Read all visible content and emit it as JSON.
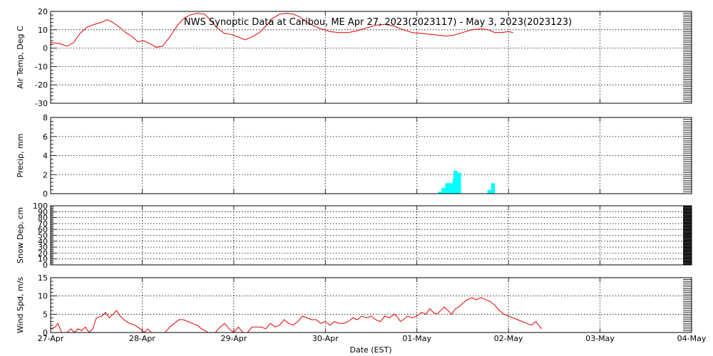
{
  "chart_data": {
    "type": "multi-panel time series",
    "title": "NWS Synoptic Data at Caribou, ME   Apr 27, 2023(2023117) - May  3, 2023(2023123)",
    "xlabel": "Date (EST)",
    "x_range": [
      0,
      7
    ],
    "x_ticks": [
      {
        "x": 0,
        "label": "27-Apr"
      },
      {
        "x": 1,
        "label": "28-Apr"
      },
      {
        "x": 2,
        "label": "29-Apr"
      },
      {
        "x": 3,
        "label": "30-Apr"
      },
      {
        "x": 4,
        "label": "01-May"
      },
      {
        "x": 5,
        "label": "02-May"
      },
      {
        "x": 6,
        "label": "03-May"
      },
      {
        "x": 7,
        "label": "04-May"
      }
    ],
    "panels": [
      {
        "id": "temp",
        "type": "line",
        "ylabel": "Air Temp, Deg C",
        "ylim": [
          -30,
          20
        ],
        "yticks": [
          -30,
          -20,
          -10,
          0,
          10,
          20
        ],
        "color": "#e00000",
        "points": [
          [
            0.0,
            3
          ],
          [
            0.1,
            2.5
          ],
          [
            0.18,
            1
          ],
          [
            0.25,
            3
          ],
          [
            0.32,
            8
          ],
          [
            0.4,
            11.5
          ],
          [
            0.48,
            13
          ],
          [
            0.55,
            14
          ],
          [
            0.62,
            15.5
          ],
          [
            0.68,
            14
          ],
          [
            0.75,
            11.5
          ],
          [
            0.82,
            8.5
          ],
          [
            0.9,
            6
          ],
          [
            0.95,
            3.5
          ],
          [
            1.02,
            4
          ],
          [
            1.08,
            2.5
          ],
          [
            1.15,
            0.5
          ],
          [
            1.22,
            1
          ],
          [
            1.3,
            6
          ],
          [
            1.38,
            12
          ],
          [
            1.45,
            16
          ],
          [
            1.52,
            18
          ],
          [
            1.6,
            19
          ],
          [
            1.68,
            18.5
          ],
          [
            1.75,
            15
          ],
          [
            1.82,
            11
          ],
          [
            1.9,
            8
          ],
          [
            1.97,
            7.5
          ],
          [
            2.05,
            6
          ],
          [
            2.12,
            4.5
          ],
          [
            2.2,
            6
          ],
          [
            2.28,
            8.5
          ],
          [
            2.35,
            12
          ],
          [
            2.42,
            16
          ],
          [
            2.5,
            18.5
          ],
          [
            2.58,
            19
          ],
          [
            2.65,
            18.5
          ],
          [
            2.72,
            17
          ],
          [
            2.8,
            14
          ],
          [
            2.88,
            12
          ],
          [
            2.95,
            10.5
          ],
          [
            3.05,
            9
          ],
          [
            3.15,
            8.5
          ],
          [
            3.25,
            8.5
          ],
          [
            3.35,
            9.5
          ],
          [
            3.45,
            11
          ],
          [
            3.55,
            12.5
          ],
          [
            3.65,
            13
          ],
          [
            3.75,
            12
          ],
          [
            3.85,
            10
          ],
          [
            3.95,
            8.5
          ],
          [
            4.05,
            8
          ],
          [
            4.15,
            7.5
          ],
          [
            4.25,
            7
          ],
          [
            4.32,
            6.5
          ],
          [
            4.4,
            7
          ],
          [
            4.5,
            8.5
          ],
          [
            4.6,
            10
          ],
          [
            4.7,
            10.5
          ],
          [
            4.78,
            10
          ],
          [
            4.85,
            8.5
          ],
          [
            4.92,
            8.5
          ],
          [
            5.0,
            9
          ],
          [
            5.05,
            8.5
          ]
        ]
      },
      {
        "id": "precip",
        "type": "bar",
        "ylabel": "Precip, mm",
        "ylim": [
          0,
          8
        ],
        "yticks": [
          0,
          2,
          4,
          6,
          8
        ],
        "color": "#00ffff",
        "bar_width": 0.042,
        "bars": [
          [
            4.23,
            0.2
          ],
          [
            4.27,
            0.6
          ],
          [
            4.31,
            1.1
          ],
          [
            4.35,
            1.1
          ],
          [
            4.39,
            1.6
          ],
          [
            4.4,
            2.4
          ],
          [
            4.44,
            2.2
          ],
          [
            4.77,
            0.4
          ],
          [
            4.81,
            1.1
          ]
        ]
      },
      {
        "id": "snow",
        "type": "line",
        "ylabel": "Snow Dep, cm",
        "ylim": [
          0,
          100
        ],
        "yticks": [
          0,
          10,
          20,
          30,
          40,
          50,
          60,
          70,
          80,
          90,
          100
        ],
        "color": "#e00000",
        "points": []
      },
      {
        "id": "wind",
        "type": "line",
        "ylabel": "Wind Spd, m/s",
        "ylim": [
          0,
          15
        ],
        "yticks": [
          0,
          5,
          10,
          15
        ],
        "color": "#e00000",
        "points": [
          [
            0.0,
            1
          ],
          [
            0.05,
            1.5
          ],
          [
            0.08,
            2.5
          ],
          [
            0.12,
            0
          ],
          [
            0.18,
            0
          ],
          [
            0.22,
            1
          ],
          [
            0.26,
            0
          ],
          [
            0.3,
            1
          ],
          [
            0.34,
            0.5
          ],
          [
            0.38,
            1.5
          ],
          [
            0.42,
            0
          ],
          [
            0.46,
            1
          ],
          [
            0.5,
            4
          ],
          [
            0.56,
            4.5
          ],
          [
            0.6,
            5.5
          ],
          [
            0.64,
            4
          ],
          [
            0.68,
            5
          ],
          [
            0.72,
            6
          ],
          [
            0.76,
            4.5
          ],
          [
            0.8,
            3.5
          ],
          [
            0.86,
            2.5
          ],
          [
            0.92,
            2
          ],
          [
            0.98,
            1
          ],
          [
            1.02,
            0
          ],
          [
            1.06,
            1
          ],
          [
            1.1,
            0
          ],
          [
            1.25,
            0
          ],
          [
            1.3,
            1.5
          ],
          [
            1.35,
            2.5
          ],
          [
            1.4,
            3.5
          ],
          [
            1.45,
            3.5
          ],
          [
            1.5,
            3
          ],
          [
            1.55,
            2.5
          ],
          [
            1.6,
            2
          ],
          [
            1.65,
            1
          ],
          [
            1.72,
            0
          ],
          [
            1.8,
            0
          ],
          [
            1.85,
            1.5
          ],
          [
            1.9,
            2.5
          ],
          [
            1.95,
            1
          ],
          [
            2.0,
            0
          ],
          [
            2.05,
            1.5
          ],
          [
            2.1,
            0
          ],
          [
            2.15,
            0
          ],
          [
            2.2,
            1.5
          ],
          [
            2.3,
            1.5
          ],
          [
            2.35,
            1
          ],
          [
            2.4,
            2.5
          ],
          [
            2.45,
            1.5
          ],
          [
            2.5,
            2
          ],
          [
            2.55,
            3.5
          ],
          [
            2.6,
            2.5
          ],
          [
            2.65,
            2
          ],
          [
            2.7,
            3
          ],
          [
            2.75,
            4.5
          ],
          [
            2.8,
            4
          ],
          [
            2.85,
            3.5
          ],
          [
            2.9,
            3.5
          ],
          [
            2.95,
            2.5
          ],
          [
            3.0,
            3
          ],
          [
            3.05,
            2
          ],
          [
            3.1,
            3
          ],
          [
            3.15,
            2.5
          ],
          [
            3.2,
            2.5
          ],
          [
            3.25,
            3
          ],
          [
            3.3,
            4
          ],
          [
            3.35,
            3.5
          ],
          [
            3.4,
            4.5
          ],
          [
            3.45,
            4
          ],
          [
            3.5,
            4.5
          ],
          [
            3.55,
            3.5
          ],
          [
            3.6,
            3
          ],
          [
            3.65,
            4.5
          ],
          [
            3.7,
            4
          ],
          [
            3.75,
            5
          ],
          [
            3.78,
            4.5
          ],
          [
            3.82,
            3
          ],
          [
            3.85,
            3.5
          ],
          [
            3.9,
            4.5
          ],
          [
            3.95,
            4
          ],
          [
            4.0,
            4.5
          ],
          [
            4.05,
            5.5
          ],
          [
            4.1,
            5
          ],
          [
            4.14,
            6.5
          ],
          [
            4.18,
            5.5
          ],
          [
            4.22,
            5
          ],
          [
            4.26,
            6
          ],
          [
            4.3,
            7
          ],
          [
            4.34,
            6
          ],
          [
            4.38,
            5
          ],
          [
            4.42,
            6.5
          ],
          [
            4.46,
            7
          ],
          [
            4.5,
            8
          ],
          [
            4.55,
            9
          ],
          [
            4.6,
            9.5
          ],
          [
            4.65,
            9
          ],
          [
            4.7,
            9.5
          ],
          [
            4.75,
            9
          ],
          [
            4.8,
            8.5
          ],
          [
            4.85,
            7.5
          ],
          [
            4.9,
            6
          ],
          [
            4.95,
            5
          ],
          [
            5.0,
            4.5
          ],
          [
            5.05,
            4
          ],
          [
            5.1,
            3.5
          ],
          [
            5.15,
            3
          ],
          [
            5.2,
            2.5
          ],
          [
            5.25,
            2
          ],
          [
            5.3,
            3
          ],
          [
            5.33,
            2
          ],
          [
            5.36,
            1
          ]
        ]
      }
    ]
  }
}
